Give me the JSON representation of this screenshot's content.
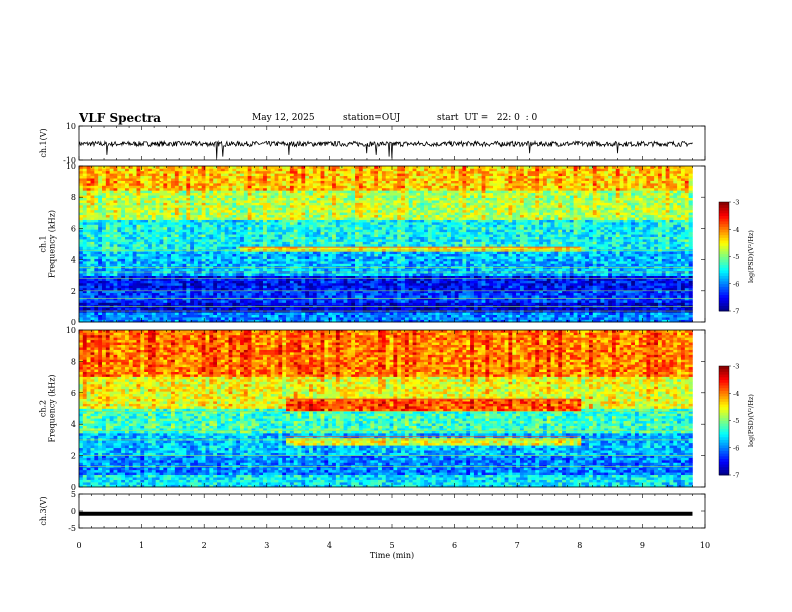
{
  "header": {
    "title": "VLF Spectra",
    "date": "May 12, 2025",
    "station": "station=OUJ",
    "start": "start  UT =   22: 0  : 0"
  },
  "chart_data": [
    {
      "type": "line",
      "panel": "ch1-waveform",
      "ylabel": "ch.1(V)",
      "ylim": [
        -10,
        10
      ],
      "yticks": [
        -10,
        10
      ],
      "series": [
        {
          "baseline": -0.5,
          "noise_amplitude": 1.5,
          "spikes": [
            {
              "x": 0.45,
              "y": -7
            },
            {
              "x": 2.2,
              "y": -9
            },
            {
              "x": 2.3,
              "y": -8
            },
            {
              "x": 3.35,
              "y": -7
            },
            {
              "x": 4.6,
              "y": -6
            },
            {
              "x": 4.75,
              "y": -7
            },
            {
              "x": 4.95,
              "y": -8
            },
            {
              "x": 5.0,
              "y": -9
            },
            {
              "x": 7.2,
              "y": -6
            },
            {
              "x": 8.6,
              "y": -6
            }
          ]
        }
      ]
    },
    {
      "type": "heatmap",
      "panel": "ch1-spectrogram",
      "ylabel": "ch.1\nFrequency (kHz)",
      "xlim": [
        0,
        10
      ],
      "ylim": [
        0,
        10
      ],
      "yticks": [
        0,
        2,
        4,
        6,
        8,
        10
      ],
      "data_xmax": 9.8,
      "colorbar": {
        "label": "log(PSD)(V²/Hz)",
        "range": [
          -7,
          -3
        ],
        "ticks": [
          "-3",
          "-4",
          "-5",
          "-6",
          "-7"
        ]
      },
      "bands_khz": [
        {
          "f0": 0,
          "f1": 0.6,
          "level": -6.0
        },
        {
          "f0": 0.6,
          "f1": 1.2,
          "level": -6.7
        },
        {
          "f0": 1.2,
          "f1": 2.0,
          "level": -6.3
        },
        {
          "f0": 2.0,
          "f1": 3.0,
          "level": -6.5
        },
        {
          "f0": 3.0,
          "f1": 4.5,
          "level": -5.8
        },
        {
          "f0": 4.5,
          "f1": 6.5,
          "level": -5.5
        },
        {
          "f0": 6.5,
          "f1": 8.5,
          "level": -4.8
        },
        {
          "f0": 8.5,
          "f1": 10,
          "level": -4.3
        }
      ],
      "lines_khz": [
        0.7,
        1.0,
        1.5,
        2.0,
        2.8,
        3.2,
        3.5,
        4.6
      ],
      "events": [
        {
          "t0": 2.55,
          "t1": 8.0,
          "f0": 4.5,
          "f1": 4.8,
          "level": -4.5
        }
      ]
    },
    {
      "type": "heatmap",
      "panel": "ch2-spectrogram",
      "ylabel": "ch.2\nFrequency (kHz)",
      "xlim": [
        0,
        10
      ],
      "ylim": [
        0,
        10
      ],
      "yticks": [
        0,
        2,
        4,
        6,
        8,
        10
      ],
      "data_xmax": 9.8,
      "colorbar": {
        "label": "log(PSD)(V²/Hz)",
        "range": [
          -7,
          -3
        ],
        "ticks": [
          "-3",
          "-4",
          "-5",
          "-6",
          "-7"
        ]
      },
      "bands_khz": [
        {
          "f0": 0,
          "f1": 0.8,
          "level": -5.6
        },
        {
          "f0": 0.8,
          "f1": 2.0,
          "level": -6.0
        },
        {
          "f0": 2.0,
          "f1": 3.5,
          "level": -5.8
        },
        {
          "f0": 3.5,
          "f1": 5.0,
          "level": -5.3
        },
        {
          "f0": 5.0,
          "f1": 7.0,
          "level": -4.6
        },
        {
          "f0": 7.0,
          "f1": 10,
          "level": -4.0
        }
      ],
      "lines_khz": [
        1.3,
        2.0,
        3.0,
        3.6,
        4.8
      ],
      "events": [
        {
          "t0": 3.3,
          "t1": 8.0,
          "f0": 4.9,
          "f1": 5.6,
          "level": -3.8
        },
        {
          "t0": 3.3,
          "t1": 8.0,
          "f0": 2.6,
          "f1": 3.2,
          "level": -4.6
        }
      ]
    },
    {
      "type": "line",
      "panel": "ch3-waveform",
      "ylabel": "ch.3(V)",
      "ylim": [
        -5,
        5
      ],
      "yticks": [
        -5,
        0,
        5
      ],
      "series": [
        {
          "baseline": -0.8,
          "noise_amplitude": 0.0
        }
      ]
    }
  ],
  "xaxis": {
    "label": "Time (min)",
    "ticks": [
      "0",
      "1",
      "2",
      "3",
      "4",
      "5",
      "6",
      "7",
      "8",
      "9",
      "10"
    ]
  }
}
